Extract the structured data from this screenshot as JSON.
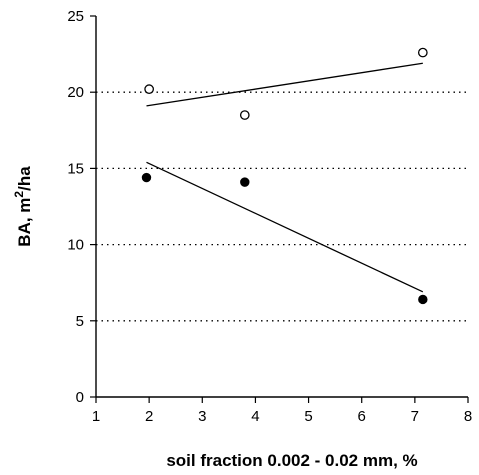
{
  "chart_data": {
    "type": "scatter",
    "title": "",
    "xlabel": "soil fraction 0.002 - 0.02 mm, %",
    "ylabel": "BA, m²/ha",
    "xlim": [
      1,
      8
    ],
    "ylim": [
      0,
      25
    ],
    "xticks": [
      1,
      2,
      3,
      4,
      5,
      6,
      7,
      8
    ],
    "yticks": [
      0,
      5,
      10,
      15,
      20,
      25
    ],
    "grid": "horizontal dotted at 5, 10, 15, 20",
    "legend": "none",
    "series": [
      {
        "marker": "open-circle",
        "x": [
          2.0,
          3.8,
          7.15
        ],
        "y": [
          20.2,
          18.5,
          22.6
        ],
        "trendline": {
          "x": [
            1.95,
            7.15
          ],
          "y": [
            19.1,
            21.9
          ]
        }
      },
      {
        "marker": "filled-circle",
        "x": [
          1.95,
          3.8,
          7.15
        ],
        "y": [
          14.4,
          14.1,
          6.4
        ],
        "trendline": {
          "x": [
            1.95,
            7.15
          ],
          "y": [
            15.4,
            6.9
          ]
        }
      }
    ]
  }
}
